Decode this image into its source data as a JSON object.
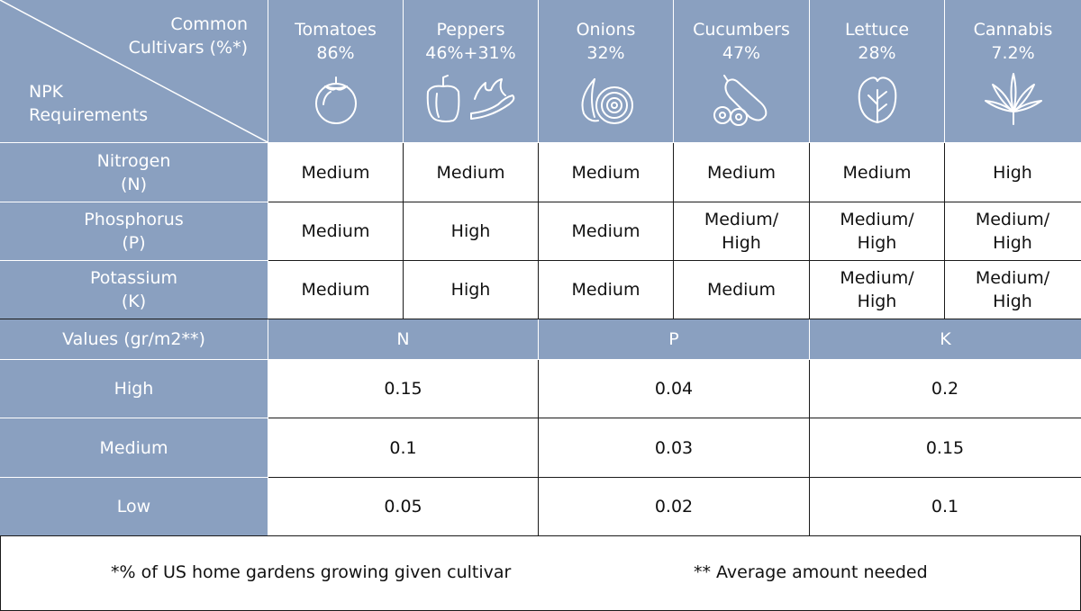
{
  "corner": {
    "top_line1": "Common",
    "top_line2": "Cultivars (%*)",
    "bottom_line1": "NPK",
    "bottom_line2": "Requirements"
  },
  "crops": [
    {
      "name": "Tomatoes",
      "pct": "86%",
      "icon": "tomato-icon"
    },
    {
      "name": "Peppers",
      "pct": "46%+31%",
      "icon": "peppers-icon"
    },
    {
      "name": "Onions",
      "pct": "32%",
      "icon": "onion-icon"
    },
    {
      "name": "Cucumbers",
      "pct": "47%",
      "icon": "cucumber-icon"
    },
    {
      "name": "Lettuce",
      "pct": "28%",
      "icon": "lettuce-icon"
    },
    {
      "name": "Cannabis",
      "pct": "7.2%",
      "icon": "cannabis-leaf-icon"
    }
  ],
  "nutrients": [
    {
      "line1": "Nitrogen",
      "line2": "(N)",
      "levels": [
        [
          "Medium"
        ],
        [
          "Medium"
        ],
        [
          "Medium"
        ],
        [
          "Medium"
        ],
        [
          "Medium"
        ],
        [
          "High"
        ]
      ]
    },
    {
      "line1": "Phosphorus",
      "line2": "(P)",
      "levels": [
        [
          "Medium"
        ],
        [
          "High"
        ],
        [
          "Medium"
        ],
        [
          "Medium/",
          "High"
        ],
        [
          "Medium/",
          "High"
        ],
        [
          "Medium/",
          "High"
        ]
      ]
    },
    {
      "line1": "Potassium",
      "line2": "(K)",
      "levels": [
        [
          "Medium"
        ],
        [
          "High"
        ],
        [
          "Medium"
        ],
        [
          "Medium"
        ],
        [
          "Medium/",
          "High"
        ],
        [
          "Medium/",
          "High"
        ]
      ]
    }
  ],
  "values_header": {
    "label": "Values (gr/m2**)",
    "cols": [
      "N",
      "P",
      "K"
    ]
  },
  "values_rows": [
    {
      "label": "High",
      "vals": [
        "0.15",
        "0.04",
        "0.2"
      ]
    },
    {
      "label": "Medium",
      "vals": [
        "0.1",
        "0.03",
        "0.15"
      ]
    },
    {
      "label": "Low",
      "vals": [
        "0.05",
        "0.02",
        "0.1"
      ]
    }
  ],
  "footnotes": {
    "left": "*% of US home gardens growing given cultivar",
    "right": "** Average amount needed"
  },
  "colors": {
    "header_blue": "#8aa0c0",
    "text": "#111111"
  },
  "chart_data": {
    "type": "table",
    "columns": [
      "Tomatoes",
      "Peppers",
      "Onions",
      "Cucumbers",
      "Lettuce",
      "Cannabis"
    ],
    "common_cultivars_pct": [
      "86%",
      "46%+31%",
      "32%",
      "47%",
      "28%",
      "7.2%"
    ],
    "npk_requirements": {
      "Nitrogen (N)": [
        "Medium",
        "Medium",
        "Medium",
        "Medium",
        "Medium",
        "High"
      ],
      "Phosphorus (P)": [
        "Medium",
        "High",
        "Medium",
        "Medium/High",
        "Medium/High",
        "Medium/High"
      ],
      "Potassium (K)": [
        "Medium",
        "High",
        "Medium",
        "Medium",
        "Medium/High",
        "Medium/High"
      ]
    },
    "values_gr_m2": {
      "High": {
        "N": 0.15,
        "P": 0.04,
        "K": 0.2
      },
      "Medium": {
        "N": 0.1,
        "P": 0.03,
        "K": 0.15
      },
      "Low": {
        "N": 0.05,
        "P": 0.02,
        "K": 0.1
      }
    }
  }
}
